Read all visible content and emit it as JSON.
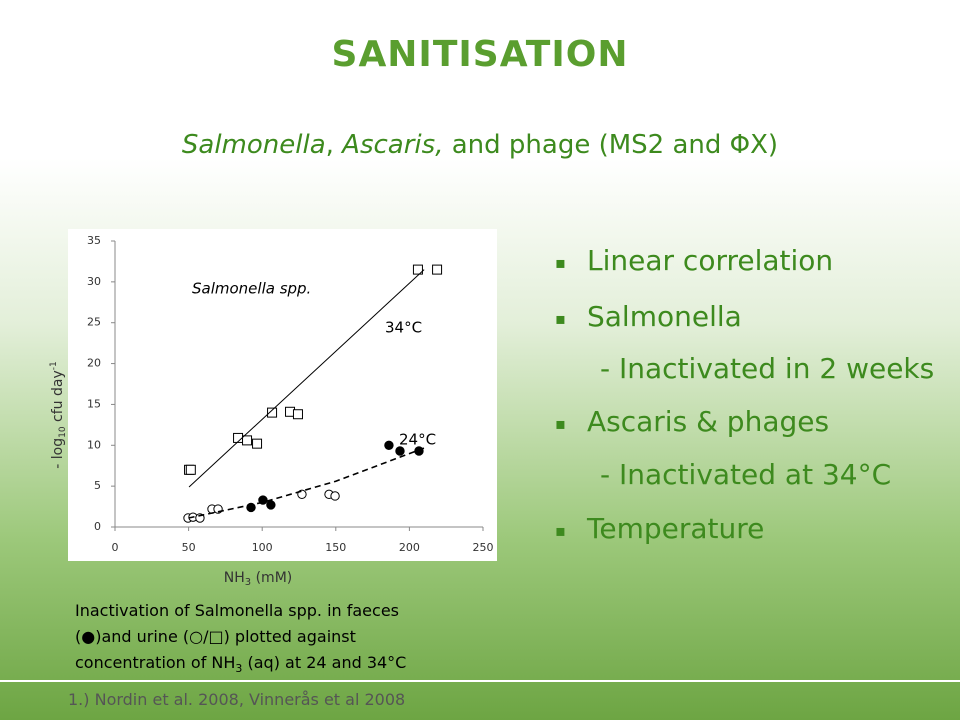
{
  "title": "SANITISATION",
  "subtitle": [
    "Salmonella",
    ", ",
    "Ascaris,",
    " and phage (MS2 and ΦX)"
  ],
  "bullets": [
    "Linear correlation",
    "Salmonella",
    "- Inactivated in 2 weeks",
    "Ascaris & phages",
    "- Inactivated at 34°C",
    "Temperature"
  ],
  "caption": [
    [
      "Inactivation of Salmonella spp. in faeces"
    ],
    [
      "(●)and urine (○/□) plotted against"
    ],
    [
      "concentration of NH",
      "3",
      " (aq) at 24 and 34°C"
    ]
  ],
  "footer": "1.) Nordin et al. 2008, Vinnerås et al 2008",
  "chart_data": {
    "type": "scatter",
    "xlabel": [
      "NH",
      "3",
      " (mM)"
    ],
    "ylabel": [
      "- log",
      "10",
      " cfu day",
      "-1"
    ],
    "annotations": [
      "Salmonella spp.",
      "34°C",
      "24°C"
    ],
    "xlim": [
      0,
      250
    ],
    "xticks": [
      0,
      50,
      100,
      150,
      200,
      250
    ],
    "ylim": [
      0,
      35
    ],
    "yticks": [
      0,
      5,
      10,
      15,
      20,
      25,
      30,
      35
    ],
    "series": [
      {
        "marker": "square",
        "color": "#000000",
        "x": [
          50.3,
          51.5,
          83.6,
          89.7,
          96.5,
          106.7,
          118.9,
          124.3,
          205.8,
          218.8
        ],
        "values": [
          7.0,
          7.0,
          10.9,
          10.6,
          10.2,
          14.0,
          14.1,
          13.8,
          31.5,
          31.5
        ]
      },
      {
        "marker": "circle",
        "color": "#000000",
        "x": [
          49.6,
          53,
          57.7,
          65.9,
          70,
          127,
          145.4,
          149.5
        ],
        "values": [
          1.1,
          1.2,
          1.1,
          2.2,
          2.2,
          4.0,
          4.0,
          3.8
        ]
      },
      {
        "marker": "filled-circle",
        "color": "#000000",
        "x": [
          92.4,
          100.5,
          105.9,
          186.1,
          193.6,
          206.5
        ],
        "values": [
          2.4,
          3.3,
          2.7,
          10.0,
          9.3,
          9.3
        ]
      },
      {
        "line": "solid",
        "color": "#000000",
        "x": [
          50.3,
          210
        ],
        "values": [
          4.9,
          31.5
        ]
      },
      {
        "line": "dashed",
        "color": "#000000",
        "x": [
          50,
          100,
          150,
          210.6
        ],
        "values": [
          1.1,
          3.0,
          5.6,
          9.7
        ]
      }
    ]
  }
}
